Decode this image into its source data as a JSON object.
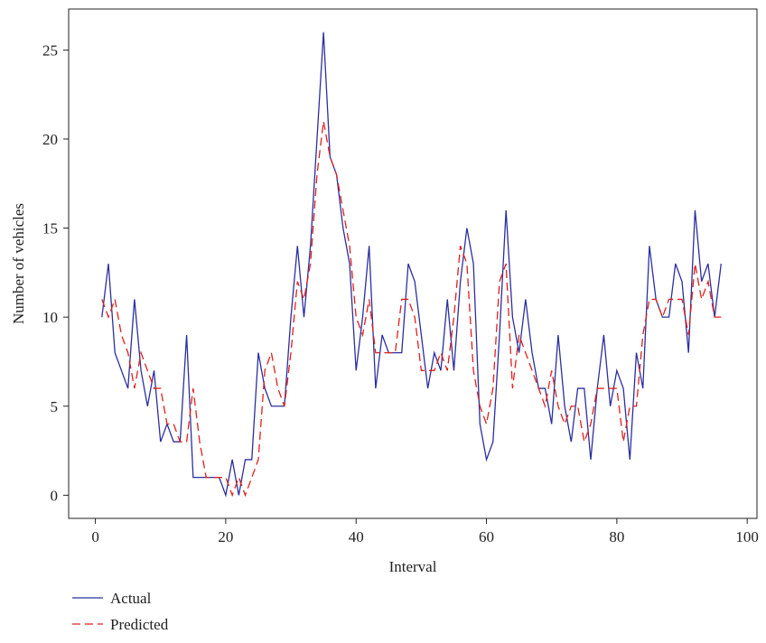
{
  "chart_data": {
    "type": "line",
    "x_label": "Interval",
    "y_label": "Number of vehicles",
    "x": [
      1,
      2,
      3,
      4,
      5,
      6,
      7,
      8,
      9,
      10,
      11,
      12,
      13,
      14,
      15,
      16,
      17,
      18,
      19,
      20,
      21,
      22,
      23,
      24,
      25,
      26,
      27,
      28,
      29,
      30,
      31,
      32,
      33,
      34,
      35,
      36,
      37,
      38,
      39,
      40,
      41,
      42,
      43,
      44,
      45,
      46,
      47,
      48,
      49,
      50,
      51,
      52,
      53,
      54,
      55,
      56,
      57,
      58,
      59,
      60,
      61,
      62,
      63,
      64,
      65,
      66,
      67,
      68,
      69,
      70,
      71,
      72,
      73,
      74,
      75,
      76,
      77,
      78,
      79,
      80,
      81,
      82,
      83,
      84,
      85,
      86,
      87,
      88,
      89,
      90,
      91,
      92,
      93,
      94,
      95,
      96
    ],
    "series": [
      {
        "name": "Actual",
        "color": "#2b2f9e",
        "dash": "none",
        "values": [
          10,
          13,
          8,
          7,
          6,
          11,
          7,
          5,
          7,
          3,
          4,
          3,
          3,
          9,
          1,
          1,
          1,
          1,
          1,
          0,
          2,
          0,
          2,
          2,
          8,
          6,
          5,
          5,
          5,
          10,
          14,
          10,
          14,
          20,
          26,
          19,
          18,
          15,
          13,
          7,
          10,
          14,
          6,
          9,
          8,
          8,
          8,
          13,
          12,
          9,
          6,
          8,
          7,
          11,
          7,
          12,
          15,
          13,
          4,
          2,
          3,
          9,
          16,
          10,
          8,
          11,
          8,
          6,
          6,
          4,
          9,
          5,
          3,
          6,
          6,
          2,
          6,
          9,
          5,
          7,
          6,
          2,
          8,
          6,
          14,
          11,
          10,
          10,
          13,
          12,
          8,
          16,
          12,
          13,
          10,
          13
        ]
      },
      {
        "name": "Predicted",
        "color": "#e0201b",
        "dash": "9 5",
        "values": [
          11,
          10,
          11,
          9,
          8,
          6,
          8,
          7,
          6,
          6,
          4,
          4,
          3,
          3,
          6,
          3,
          1,
          1,
          1,
          1,
          0,
          1,
          0,
          1,
          2,
          7,
          8,
          6,
          5,
          8,
          12,
          11,
          13,
          18,
          21,
          19,
          18,
          16,
          14,
          10,
          9,
          11,
          8,
          8,
          8,
          8,
          11,
          11,
          10,
          7,
          7,
          7,
          8,
          7,
          10,
          14,
          13,
          7,
          5,
          4,
          6,
          12,
          13,
          6,
          9,
          8,
          7,
          6,
          5,
          7,
          5,
          4,
          5,
          5,
          3,
          4,
          6,
          6,
          6,
          6,
          3,
          5,
          5,
          9,
          11,
          11,
          10,
          11,
          11,
          11,
          9,
          13,
          11,
          12,
          10,
          10
        ]
      }
    ],
    "xlim": [
      -4.1,
      101.5
    ],
    "ylim": [
      -1.3,
      27.3
    ],
    "xticks": [
      0,
      20,
      40,
      60,
      80,
      100
    ],
    "yticks": [
      0,
      5,
      10,
      15,
      20,
      25
    ]
  }
}
